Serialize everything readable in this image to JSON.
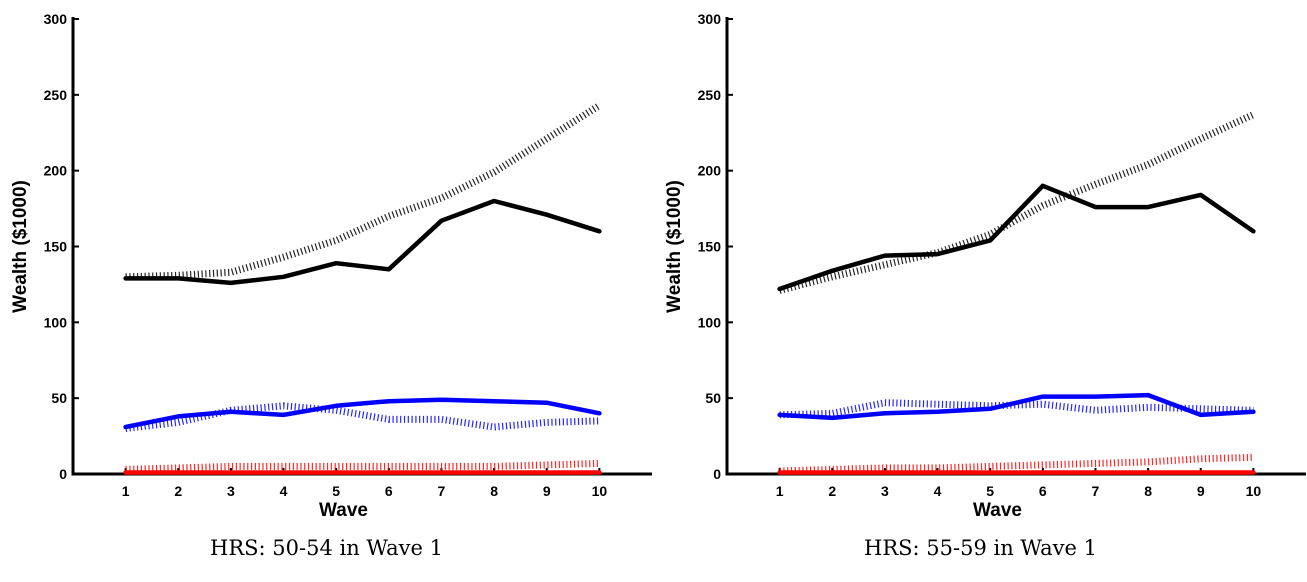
{
  "chart_data": [
    {
      "type": "line",
      "caption": "HRS: 50-54 in Wave 1",
      "xlabel": "Wave",
      "ylabel": "Wealth ($1000)",
      "xlim": [
        0,
        11
      ],
      "ylim": [
        0,
        300
      ],
      "xticks": [
        1,
        2,
        3,
        4,
        5,
        6,
        7,
        8,
        9,
        10
      ],
      "yticks": [
        0,
        50,
        100,
        150,
        200,
        250,
        300
      ],
      "grid": false,
      "x": [
        1,
        2,
        3,
        4,
        5,
        6,
        7,
        8,
        9,
        10
      ],
      "series": [
        {
          "style": "solid",
          "color": "#000000",
          "values": [
            129,
            129,
            126,
            130,
            139,
            135,
            167,
            180,
            171,
            160
          ]
        },
        {
          "style": "dotted",
          "color": "#000000",
          "values": [
            130,
            131,
            133,
            143,
            154,
            170,
            182,
            199,
            221,
            243
          ]
        },
        {
          "style": "solid",
          "color": "#0000ff",
          "values": [
            31,
            38,
            41,
            39,
            45,
            48,
            49,
            48,
            47,
            40
          ]
        },
        {
          "style": "dotted",
          "color": "#0000ff",
          "values": [
            30,
            34,
            42,
            45,
            42,
            36,
            36,
            31,
            34,
            35
          ]
        },
        {
          "style": "solid",
          "color": "#ff0000",
          "values": [
            1,
            1,
            1,
            1,
            1,
            1,
            1,
            1,
            1,
            1
          ]
        },
        {
          "style": "dotted",
          "color": "#ff0000",
          "values": [
            3,
            4,
            5,
            5,
            5,
            5,
            5,
            5,
            6,
            7
          ]
        }
      ]
    },
    {
      "type": "line",
      "caption": "HRS: 55-59 in Wave 1",
      "xlabel": "Wave",
      "ylabel": "Wealth ($1000)",
      "xlim": [
        0,
        11
      ],
      "ylim": [
        0,
        300
      ],
      "xticks": [
        1,
        2,
        3,
        4,
        5,
        6,
        7,
        8,
        9,
        10
      ],
      "yticks": [
        0,
        50,
        100,
        150,
        200,
        250,
        300
      ],
      "grid": false,
      "x": [
        1,
        2,
        3,
        4,
        5,
        6,
        7,
        8,
        9,
        10
      ],
      "series": [
        {
          "style": "solid",
          "color": "#000000",
          "values": [
            122,
            134,
            144,
            145,
            154,
            190,
            176,
            176,
            184,
            160
          ]
        },
        {
          "style": "dotted",
          "color": "#000000",
          "values": [
            121,
            130,
            138,
            146,
            158,
            177,
            191,
            204,
            221,
            237
          ]
        },
        {
          "style": "solid",
          "color": "#0000ff",
          "values": [
            39,
            37,
            40,
            41,
            43,
            51,
            51,
            52,
            39,
            41
          ]
        },
        {
          "style": "dotted",
          "color": "#0000ff",
          "values": [
            39,
            40,
            47,
            46,
            45,
            46,
            42,
            44,
            43,
            42
          ]
        },
        {
          "style": "solid",
          "color": "#ff0000",
          "values": [
            1,
            1,
            1,
            1,
            1,
            1,
            1,
            1,
            1,
            1
          ]
        },
        {
          "style": "dotted",
          "color": "#ff0000",
          "values": [
            2,
            3,
            4,
            4,
            5,
            6,
            7,
            8,
            10,
            11
          ]
        }
      ]
    }
  ]
}
